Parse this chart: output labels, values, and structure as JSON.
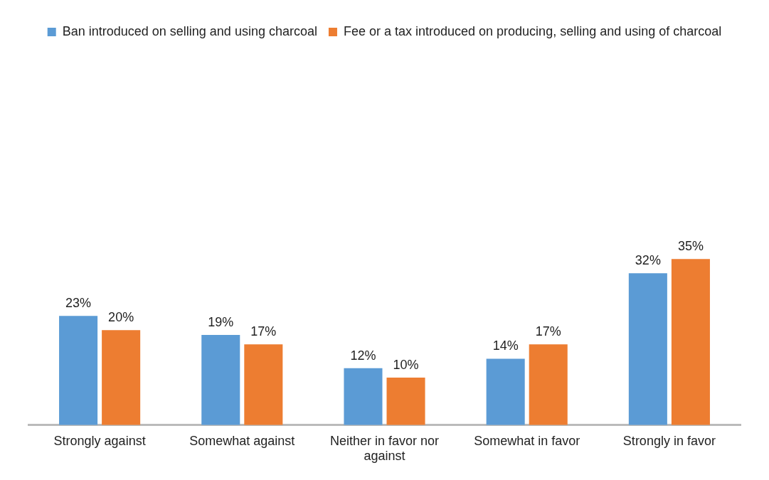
{
  "chart_data": {
    "type": "bar",
    "categories": [
      "Strongly against",
      "Somewhat against",
      "Neither in favor nor against",
      "Somewhat in favor",
      "Strongly in favor"
    ],
    "series": [
      {
        "name": "Ban introduced on selling and using charcoal",
        "color": "#5b9bd5",
        "values": [
          23,
          19,
          12,
          14,
          32
        ],
        "value_labels": [
          "23%",
          "19%",
          "12%",
          "14%",
          "32%"
        ]
      },
      {
        "name": "Fee or a tax introduced on producing, selling and using of charcoal",
        "color": "#ed7d31",
        "values": [
          20,
          17,
          10,
          17,
          35
        ],
        "value_labels": [
          "20%",
          "17%",
          "10%",
          "17%",
          "35%"
        ]
      }
    ],
    "legend": "top",
    "grid": false
  }
}
